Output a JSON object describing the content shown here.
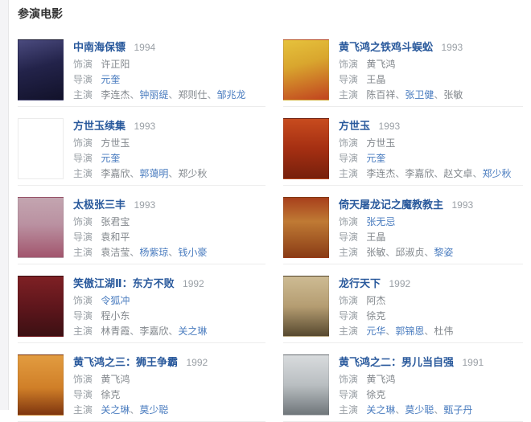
{
  "section": {
    "title": "参演电影"
  },
  "labels": {
    "role": "饰演",
    "director": "导演",
    "cast": "主演"
  },
  "colors": {
    "title_link": "#29599c",
    "name_link": "#4a7cbf",
    "label_gray": "#9aa0a6",
    "plain_text": "#82878c",
    "divider": "#ececec",
    "edge_strip": "#f4f4f6"
  },
  "movies": [
    {
      "title": "中南海保镖",
      "year": "1994",
      "role": {
        "text": "许正阳",
        "link": false
      },
      "director": {
        "text": "元奎",
        "link": true
      },
      "cast": [
        {
          "text": "李连杰",
          "link": false
        },
        {
          "text": "钟丽缇",
          "link": true
        },
        {
          "text": "郑则仕",
          "link": false
        },
        {
          "text": "邹兆龙",
          "link": true
        }
      ],
      "poster": {
        "name": "poster-zhongnanhai-baobiao",
        "gradient": "165deg, #4a4a7e 0%, #23234a 45%, #12122a 100%"
      }
    },
    {
      "title": "黄飞鸿之铁鸡斗蜈蚣",
      "year": "1993",
      "role": {
        "text": "黄飞鸿",
        "link": false
      },
      "director": {
        "text": "王晶",
        "link": false
      },
      "cast": [
        {
          "text": "陈百祥",
          "link": false
        },
        {
          "text": "张卫健",
          "link": true
        },
        {
          "text": "张敏",
          "link": false
        }
      ],
      "poster": {
        "name": "poster-tieji-dou-wugong",
        "gradient": "165deg, #e6c23c 0%, #d9a62e 40%, #c1431f 100%"
      }
    },
    {
      "title": "方世玉续集",
      "year": "1993",
      "role": {
        "text": "方世玉",
        "link": false
      },
      "director": {
        "text": "元奎",
        "link": true
      },
      "cast": [
        {
          "text": "李嘉欣",
          "link": false
        },
        {
          "text": "郭蔼明",
          "link": true
        },
        {
          "text": "郑少秋",
          "link": false
        }
      ],
      "poster": {
        "name": "poster-fang-shiyu-xuji",
        "gradient": "180deg, #e8dac5 0%, #d0priv 0%, #cf6b30 45%, #b03318 100%"
      }
    },
    {
      "title": "方世玉",
      "year": "1993",
      "role": {
        "text": "方世玉",
        "link": false
      },
      "director": {
        "text": "元奎",
        "link": true
      },
      "cast": [
        {
          "text": "李连杰",
          "link": false
        },
        {
          "text": "李嘉欣",
          "link": false
        },
        {
          "text": "赵文卓",
          "link": false
        },
        {
          "text": "郑少秋",
          "link": true
        }
      ],
      "poster": {
        "name": "poster-fang-shiyu",
        "gradient": "180deg, #c74b1e 0%, #a52f12 50%, #77200c 100%"
      }
    },
    {
      "title": "太极张三丰",
      "year": "1993",
      "role": {
        "text": "张君宝",
        "link": false
      },
      "director": {
        "text": "袁和平",
        "link": false
      },
      "cast": [
        {
          "text": "袁洁莹",
          "link": false
        },
        {
          "text": "杨紫琼",
          "link": true
        },
        {
          "text": "钱小豪",
          "link": true
        }
      ],
      "poster": {
        "name": "poster-taiji-zhangsanfeng",
        "gradient": "180deg, #c3a5b0 0%, #ba91a1 45%, #a2556d 100%"
      }
    },
    {
      "title": "倚天屠龙记之魔教教主",
      "year": "1993",
      "role": {
        "text": "张无忌",
        "link": true
      },
      "director": {
        "text": "王晶",
        "link": false
      },
      "cast": [
        {
          "text": "张敏",
          "link": false
        },
        {
          "text": "邱淑贞",
          "link": false
        },
        {
          "text": "黎姿",
          "link": true
        }
      ],
      "poster": {
        "name": "poster-yitian-tulongji",
        "gradient": "180deg, #a8401c 0%, #bf7a34 40%, #8a3c16 100%"
      }
    },
    {
      "title": "笑傲江湖Ⅱ：东方不败",
      "year": "1992",
      "role": {
        "text": "令狐冲",
        "link": true
      },
      "director": {
        "text": "程小东",
        "link": false
      },
      "cast": [
        {
          "text": "林青霞",
          "link": false
        },
        {
          "text": "李嘉欣",
          "link": false
        },
        {
          "text": "关之琳",
          "link": true
        }
      ],
      "poster": {
        "name": "poster-dongfang-bubai",
        "gradient": "180deg, #7e2024 0%, #5f161c 50%, #3c1013 100%"
      }
    },
    {
      "title": "龙行天下",
      "year": "1992",
      "role": {
        "text": "阿杰",
        "link": false
      },
      "director": {
        "text": "徐克",
        "link": false
      },
      "cast": [
        {
          "text": "元华",
          "link": true
        },
        {
          "text": "郭锦恩",
          "link": true
        },
        {
          "text": "杜伟",
          "link": false
        }
      ],
      "poster": {
        "name": "poster-longxing-tianxia",
        "gradient": "180deg, #cdbb93 0%, #b59d72 50%, #57492f 100%"
      }
    },
    {
      "title": "黄飞鸿之三：狮王争霸",
      "year": "1992",
      "role": {
        "text": "黄飞鸿",
        "link": false
      },
      "director": {
        "text": "徐克",
        "link": false
      },
      "cast": [
        {
          "text": "关之琳",
          "link": true
        },
        {
          "text": "莫少聪",
          "link": true
        }
      ],
      "poster": {
        "name": "poster-shiwang-zhengba",
        "gradient": "180deg, #e29c40 0%, #d07f28 55%, #7e350f 100%"
      }
    },
    {
      "title": "黄飞鸿之二：男儿当自强",
      "year": "1991",
      "role": {
        "text": "黄飞鸿",
        "link": false
      },
      "director": {
        "text": "徐克",
        "link": false
      },
      "cast": [
        {
          "text": "关之琳",
          "link": true
        },
        {
          "text": "莫少聪",
          "link": true
        },
        {
          "text": "甄子丹",
          "link": true
        }
      ],
      "poster": {
        "name": "poster-naner-dang-ziqiang",
        "gradient": "180deg, #d8dbdd 0%, #b9bec1 50%, #6f767a 100%"
      }
    }
  ]
}
